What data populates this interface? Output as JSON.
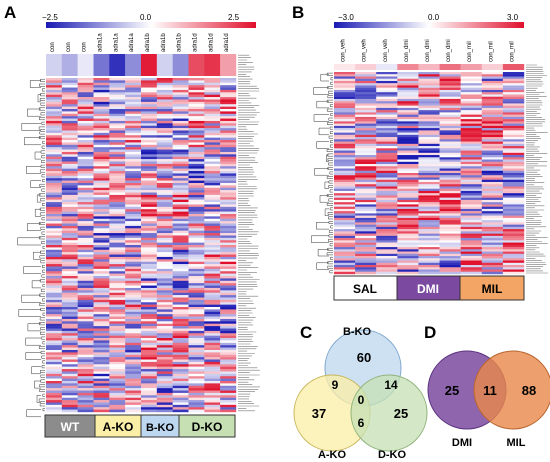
{
  "panels": {
    "A": {
      "letter": "A",
      "scale": {
        "min": "−2.5",
        "mid": "0.0",
        "max": "2.5"
      },
      "columns": [
        "con",
        "con",
        "con",
        "adra1a",
        "adra1a",
        "adra1a",
        "adra1b",
        "adra1b",
        "adra1b",
        "adra1d",
        "adra1d",
        "adra1d"
      ],
      "groups": [
        {
          "label": "WT",
          "fill": "#8c8c8c",
          "text_color": "#ffffff"
        },
        {
          "label": "A-KO",
          "fill": "#fbeea6",
          "text_color": "#000000"
        },
        {
          "label": "B-KO",
          "fill": "#bcd7ef",
          "text_color": "#000000"
        },
        {
          "label": "D-KO",
          "fill": "#c6e0b4",
          "text_color": "#000000"
        }
      ]
    },
    "B": {
      "letter": "B",
      "scale": {
        "min": "−3.0",
        "mid": "0.0",
        "max": "3.0"
      },
      "columns": [
        "con_veh",
        "con_veh",
        "con_veh",
        "con_dmi",
        "con_dmi",
        "con_dmi",
        "con_mil",
        "con_mil",
        "con_mil"
      ],
      "groups": [
        {
          "label": "SAL",
          "fill": "#ffffff",
          "text_color": "#000000"
        },
        {
          "label": "DMI",
          "fill": "#7b4aa0",
          "text_color": "#ffffff"
        },
        {
          "label": "MIL",
          "fill": "#f2a564",
          "text_color": "#000000"
        }
      ]
    },
    "C": {
      "letter": "C",
      "sets": [
        {
          "name": "B-KO",
          "color": "#bcd7ef"
        },
        {
          "name": "A-KO",
          "color": "#fbeea6"
        },
        {
          "name": "D-KO",
          "color": "#c6e0b4"
        }
      ],
      "regions": {
        "b_only": "60",
        "a_only": "37",
        "d_only": "25",
        "ab": "9",
        "bd": "14",
        "ad": "6",
        "abd": "0"
      }
    },
    "D": {
      "letter": "D",
      "sets": [
        {
          "name": "DMI",
          "color": "#7b4aa0"
        },
        {
          "name": "MIL",
          "color": "#e8884a"
        }
      ],
      "regions": {
        "dmi_only": "25",
        "both": "11",
        "mil_only": "88"
      }
    }
  },
  "colors": {
    "low": "#1a1ab4",
    "mid": "#ffffff",
    "high": "#e0102c"
  }
}
